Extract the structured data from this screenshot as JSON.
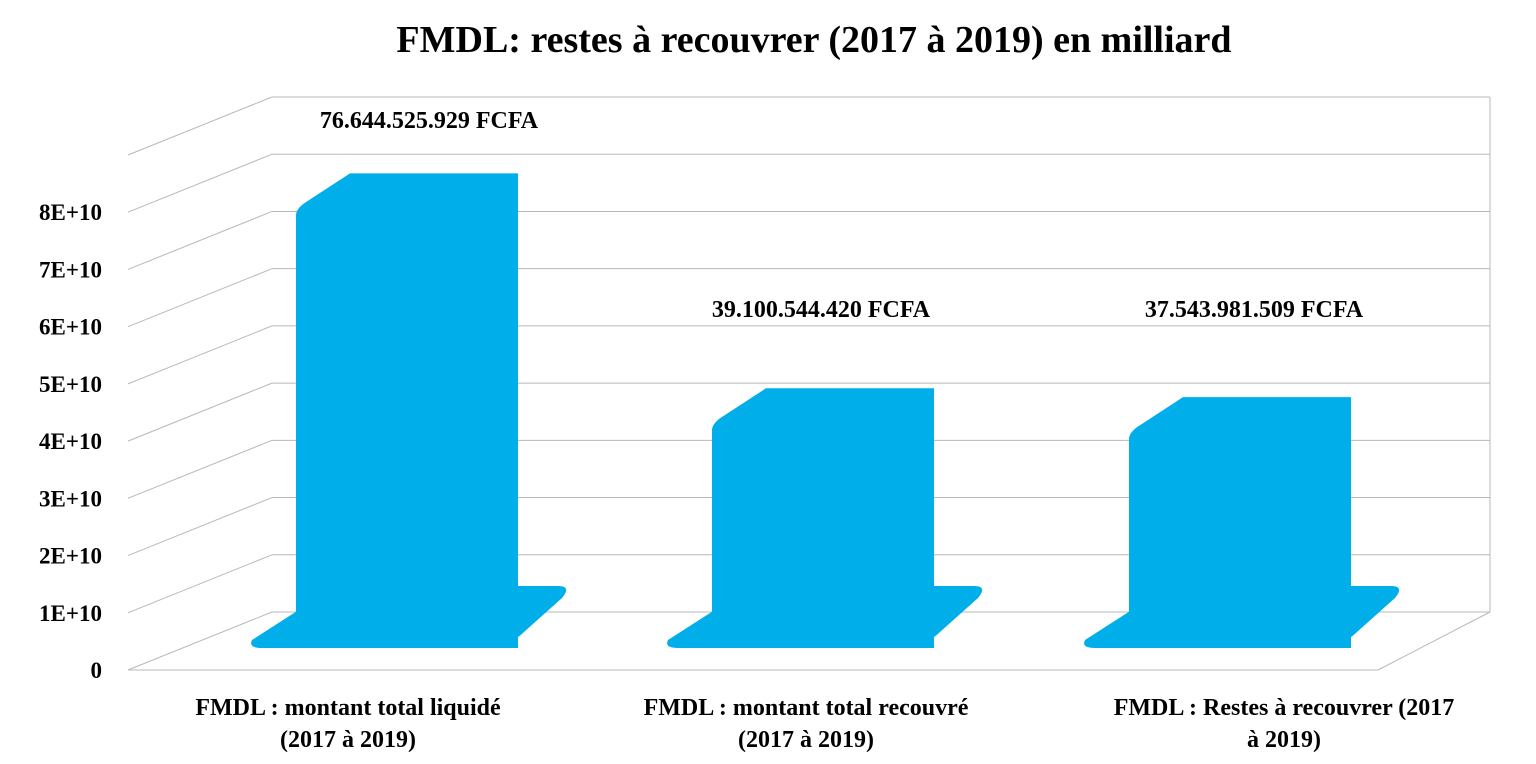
{
  "chart_data": {
    "type": "bar",
    "title": "FMDL: restes à recouvrer (2017 à 2019) en milliard",
    "xlabel": "",
    "ylabel": "",
    "categories": [
      [
        "FMDL : montant total liquidé",
        "(2017 à 2019)"
      ],
      [
        "FMDL : montant total recouvré",
        "(2017 à 2019)"
      ],
      [
        "FMDL : Restes à recouvrer (2017",
        "à 2019)"
      ]
    ],
    "values": [
      76644525929,
      39100544420,
      37543981509
    ],
    "data_labels": [
      "76.644.525.929 FCFA",
      "39.100.544.420 FCFA",
      "37.543.981.509 FCFA"
    ],
    "yticks": [
      {
        "value": 0,
        "label": "0"
      },
      {
        "value": 10000000000,
        "label": "1E+10"
      },
      {
        "value": 20000000000,
        "label": "2E+10"
      },
      {
        "value": 30000000000,
        "label": "3E+10"
      },
      {
        "value": 40000000000,
        "label": "4E+10"
      },
      {
        "value": 50000000000,
        "label": "5E+10"
      },
      {
        "value": 60000000000,
        "label": "6E+10"
      },
      {
        "value": 70000000000,
        "label": "7E+10"
      },
      {
        "value": 80000000000,
        "label": "8E+10"
      }
    ],
    "ylim": [
      0,
      90000000000
    ],
    "grid": true,
    "style": "3d",
    "bar_color": "#00aeea"
  }
}
